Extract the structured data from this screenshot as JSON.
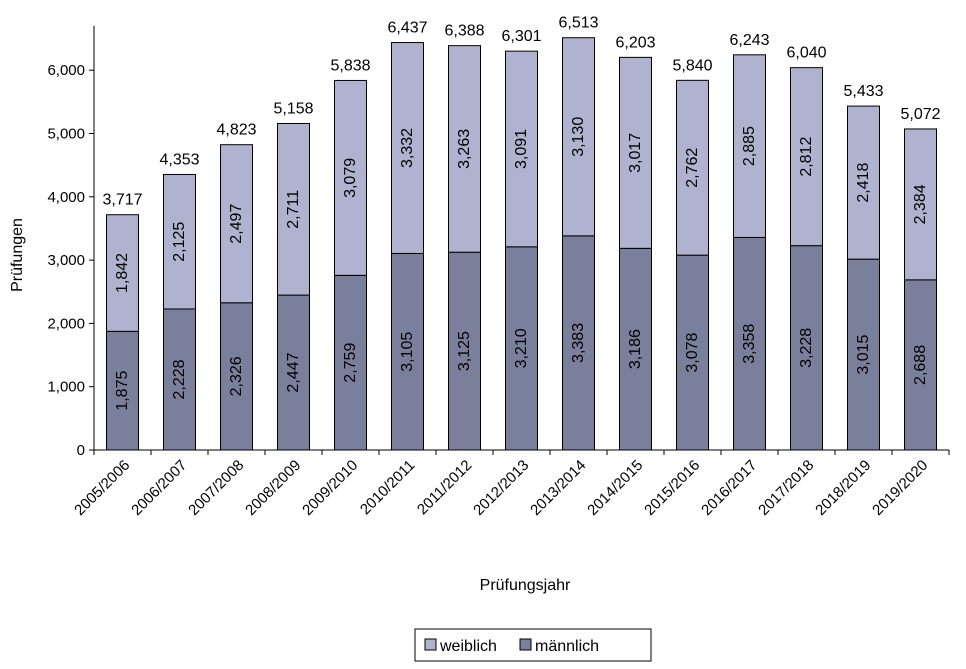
{
  "chart_data": {
    "type": "bar",
    "stacked": true,
    "title": "",
    "xlabel": "Prüfungsjahr",
    "ylabel": "Prüfungen",
    "ylim": [
      0,
      6700
    ],
    "yticks": [
      0,
      1000,
      2000,
      3000,
      4000,
      5000,
      6000
    ],
    "ytick_labels": [
      "0",
      "1,000",
      "2,000",
      "3,000",
      "4,000",
      "5,000",
      "6,000"
    ],
    "grid": false,
    "legend_position": "bottom",
    "categories": [
      "2005/2006",
      "2006/2007",
      "2007/2008",
      "2008/2009",
      "2009/2010",
      "2010/2011",
      "2011/2012",
      "2012/2013",
      "2013/2014",
      "2014/2015",
      "2015/2016",
      "2016/2017",
      "2017/2018",
      "2018/2019",
      "2019/2020"
    ],
    "series": [
      {
        "name": "männlich",
        "color": "#7a7f9c",
        "values": [
          1875,
          2228,
          2326,
          2447,
          2759,
          3105,
          3125,
          3210,
          3383,
          3186,
          3078,
          3358,
          3228,
          3015,
          2688
        ],
        "labels": [
          "1,875",
          "2,228",
          "2,326",
          "2,447",
          "2,759",
          "3,105",
          "3,125",
          "3,210",
          "3,383",
          "3,186",
          "3,078",
          "3,358",
          "3,228",
          "3,015",
          "2,688"
        ]
      },
      {
        "name": "weiblich",
        "color": "#b0b3cf",
        "values": [
          1842,
          2125,
          2497,
          2711,
          3079,
          3332,
          3263,
          3091,
          3130,
          3017,
          2762,
          2885,
          2812,
          2418,
          2384
        ],
        "labels": [
          "1,842",
          "2,125",
          "2,497",
          "2,711",
          "3,079",
          "3,332",
          "3,263",
          "3,091",
          "3,130",
          "3,017",
          "2,762",
          "2,885",
          "2,812",
          "2,418",
          "2,384"
        ]
      }
    ],
    "totals": [
      3717,
      4353,
      4823,
      5158,
      5838,
      6437,
      6388,
      6301,
      6513,
      6203,
      5840,
      6243,
      6040,
      5433,
      5072
    ],
    "total_labels": [
      "3,717",
      "4,353",
      "4,823",
      "5,158",
      "5,838",
      "6,437",
      "6,388",
      "6,301",
      "6,513",
      "6,203",
      "5,840",
      "6,243",
      "6,040",
      "5,433",
      "5,072"
    ],
    "legend": [
      "weiblich",
      "männlich"
    ]
  }
}
